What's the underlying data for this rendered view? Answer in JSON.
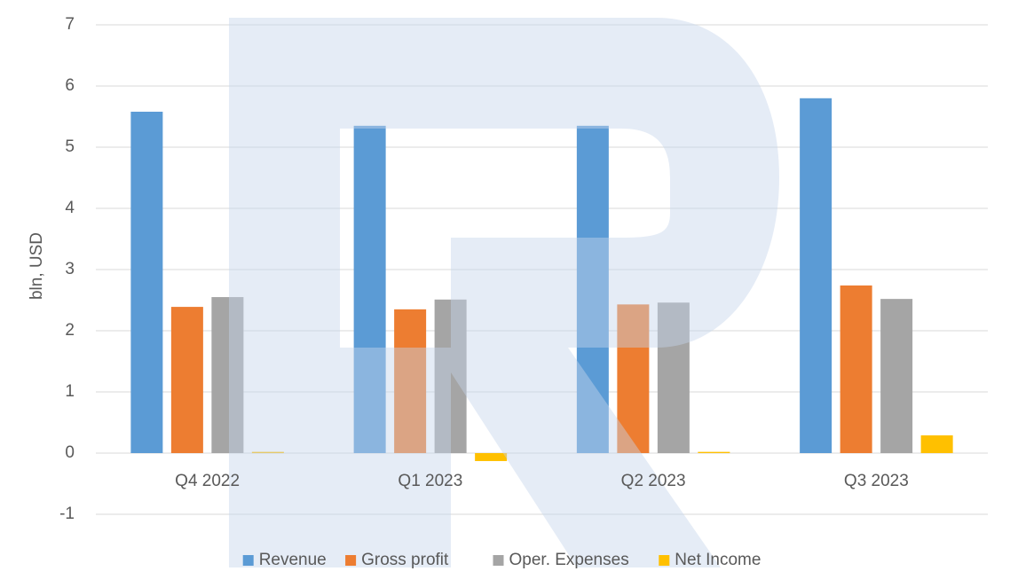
{
  "chart_data": {
    "type": "bar",
    "y_label": "bln, USD",
    "categories": [
      "Q4 2022",
      "Q1 2023",
      "Q2 2023",
      "Q3 2023"
    ],
    "series": [
      {
        "name": "Revenue",
        "color": "#5b9bd5",
        "values": [
          5.58,
          5.35,
          5.35,
          5.8
        ]
      },
      {
        "name": "Gross profit",
        "color": "#ed7d31",
        "values": [
          2.39,
          2.35,
          2.43,
          2.74
        ]
      },
      {
        "name": "Oper. Expenses",
        "color": "#a5a5a5",
        "values": [
          2.55,
          2.51,
          2.46,
          2.52
        ]
      },
      {
        "name": "Net Income",
        "color": "#ffc000",
        "values": [
          0.02,
          -0.13,
          0.02,
          0.29
        ]
      }
    ],
    "ylim": [
      -1,
      7
    ],
    "yticks": [
      -1,
      0,
      1,
      2,
      3,
      4,
      5,
      6,
      7
    ],
    "grid": true,
    "legend": "bottom"
  }
}
